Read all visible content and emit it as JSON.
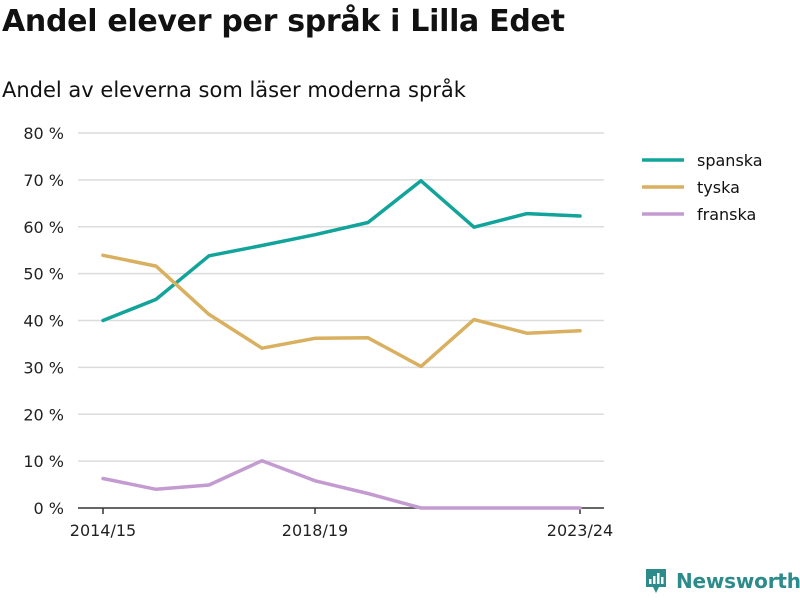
{
  "title": "Andel elever per språk i Lilla Edet",
  "subtitle": "Andel av eleverna som läser moderna språk",
  "brand": "Newsworthy",
  "chart_data": {
    "type": "line",
    "x": [
      "2014/15",
      "2015/16",
      "2016/17",
      "2017/18",
      "2018/19",
      "2019/20",
      "2020/21",
      "2021/22",
      "2022/23",
      "2023/24"
    ],
    "x_tick_labels": [
      "2014/15",
      "2018/19",
      "2023/24"
    ],
    "y_ticks": [
      0,
      10,
      20,
      30,
      40,
      50,
      60,
      70,
      80
    ],
    "y_tick_labels": [
      "0 %",
      "10 %",
      "20 %",
      "30 %",
      "40 %",
      "50 %",
      "60 %",
      "70 %",
      "80 %"
    ],
    "ylim": [
      0,
      80
    ],
    "grid": true,
    "legend_position": "right",
    "series": [
      {
        "name": "spanska",
        "color": "#12a39a",
        "values": [
          40,
          44.5,
          53.8,
          56,
          58.3,
          60.9,
          69.8,
          59.9,
          62.8,
          62.3
        ]
      },
      {
        "name": "tyska",
        "color": "#d9b060",
        "values": [
          53.9,
          51.6,
          41.3,
          34.1,
          36.2,
          36.3,
          30.2,
          40.2,
          37.3,
          37.8
        ]
      },
      {
        "name": "franska",
        "color": "#c49bd1",
        "values": [
          6.3,
          4.0,
          4.9,
          10.1,
          5.8,
          3.1,
          0,
          0,
          0,
          0
        ]
      }
    ]
  }
}
